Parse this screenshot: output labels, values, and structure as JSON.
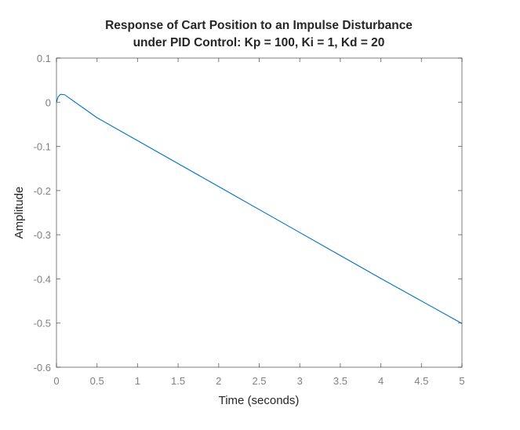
{
  "chart_data": {
    "type": "line",
    "title": "Response of Cart Position to an Impulse Disturbance under PID Control: Kp = 100, Ki = 1, Kd = 20",
    "title_lines": [
      "Response of Cart Position to an Impulse Disturbance",
      "under PID Control: Kp = 100, Ki = 1, Kd = 20"
    ],
    "xlabel": "Time (seconds)",
    "ylabel": "Amplitude",
    "xlim": [
      0,
      5
    ],
    "ylim": [
      -0.6,
      0.1
    ],
    "xticks": [
      0,
      0.5,
      1,
      1.5,
      2,
      2.5,
      3,
      3.5,
      4,
      4.5,
      5
    ],
    "xtick_labels": [
      "0",
      "0.5",
      "1",
      "1.5",
      "2",
      "2.5",
      "3",
      "3.5",
      "4",
      "4.5",
      "5"
    ],
    "yticks": [
      0.1,
      0,
      -0.1,
      -0.2,
      -0.3,
      -0.4,
      -0.5,
      -0.6
    ],
    "ytick_labels": [
      "0.1",
      "0",
      "-0.1",
      "-0.2",
      "-0.3",
      "-0.4",
      "-0.5",
      "-0.6"
    ],
    "grid": false,
    "legend": null,
    "series": [
      {
        "name": "Cart position",
        "color": "#0072BD",
        "x": [
          0,
          0.02,
          0.05,
          0.1,
          0.5,
          1,
          1.5,
          2,
          2.5,
          3,
          3.5,
          4,
          4.5,
          5
        ],
        "y": [
          0,
          0.012,
          0.018,
          0.017,
          -0.035,
          -0.087,
          -0.139,
          -0.191,
          -0.243,
          -0.295,
          -0.347,
          -0.399,
          -0.45,
          -0.501
        ]
      }
    ]
  }
}
